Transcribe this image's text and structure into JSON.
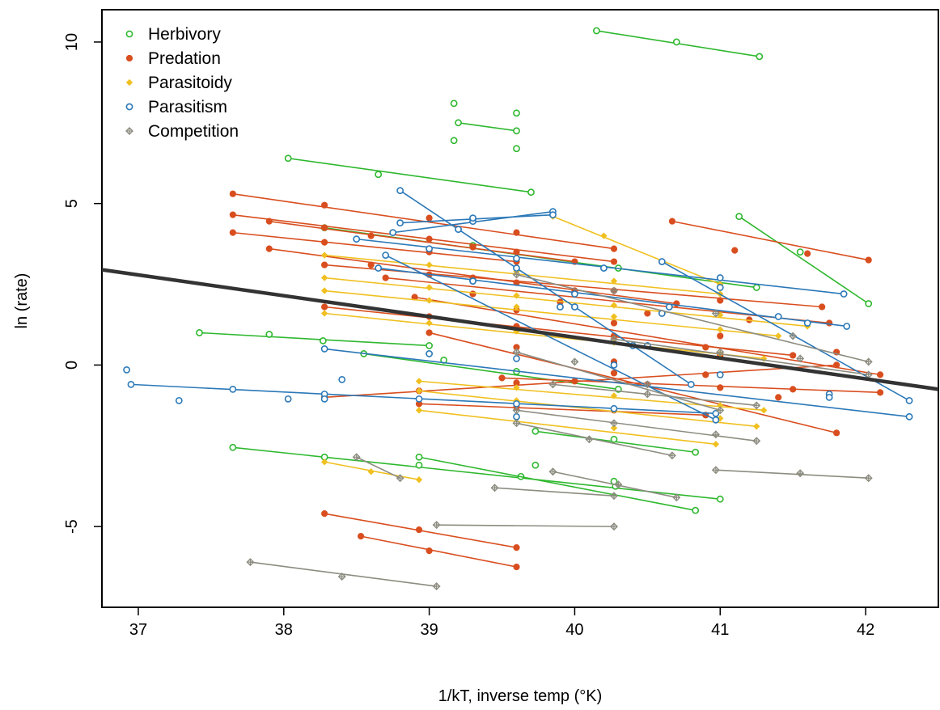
{
  "chart_data": {
    "type": "scatter",
    "xlabel": "1/kT, inverse temp (°K)",
    "ylabel": "ln (rate)",
    "xlim": [
      36.75,
      42.5
    ],
    "ylim": [
      -7.5,
      11.0
    ],
    "x_ticks": [
      37,
      38,
      39,
      40,
      41,
      42
    ],
    "x_tick_labels": [
      "37",
      "38",
      "39",
      "40",
      "41",
      "42"
    ],
    "y_ticks": [
      -5,
      0,
      5,
      10
    ],
    "y_tick_labels": [
      "-5",
      "0",
      "5",
      "10"
    ],
    "grid": false,
    "legend_position": "top-left",
    "legend": [
      {
        "label": "Herbivory",
        "color": "#2eb82e",
        "marker": "open-circle"
      },
      {
        "label": "Predation",
        "color": "#d94e1f",
        "marker": "filled-circle"
      },
      {
        "label": "Parasitoidy",
        "color": "#f0c020",
        "marker": "filled-diamond"
      },
      {
        "label": "Parasitism",
        "color": "#2a78b8",
        "marker": "open-circle"
      },
      {
        "label": "Competition",
        "color": "#8c8c80",
        "marker": "diamond-plus"
      }
    ],
    "overall_fit": {
      "x": [
        36.75,
        42.5
      ],
      "y": [
        2.95,
        -0.75
      ],
      "color": "#333333"
    },
    "series": [
      {
        "type": "Herbivory",
        "x": [
          40.15,
          40.7,
          41.27
        ],
        "y": [
          10.35,
          10.0,
          9.55
        ]
      },
      {
        "type": "Herbivory",
        "x": [
          39.2,
          39.6
        ],
        "y": [
          7.5,
          7.25
        ],
        "points": [
          [
            39.17,
            8.1
          ],
          [
            39.17,
            6.95
          ],
          [
            39.6,
            7.8
          ],
          [
            39.6,
            6.7
          ]
        ]
      },
      {
        "type": "Herbivory",
        "x": [
          38.03,
          38.65,
          39.7
        ],
        "y": [
          6.4,
          5.9,
          5.35
        ]
      },
      {
        "type": "Herbivory",
        "x": [
          41.13,
          41.55,
          42.02
        ],
        "y": [
          4.6,
          3.5,
          1.9
        ]
      },
      {
        "type": "Herbivory",
        "x": [
          38.28,
          39.3,
          40.3,
          41.25
        ],
        "y": [
          4.25,
          3.7,
          3.0,
          2.4
        ]
      },
      {
        "type": "Herbivory",
        "x": [
          37.42,
          37.9,
          38.27,
          39.0
        ],
        "y": [
          1.0,
          0.95,
          0.75,
          0.6
        ]
      },
      {
        "type": "Herbivory",
        "x": [
          38.55,
          39.1,
          39.6,
          40.3
        ],
        "y": [
          0.35,
          0.15,
          -0.2,
          -0.75
        ]
      },
      {
        "type": "Herbivory",
        "x": [
          39.73,
          40.27,
          40.83
        ],
        "y": [
          -2.05,
          -2.3,
          -2.7
        ]
      },
      {
        "type": "Herbivory",
        "x": [
          37.65,
          38.28,
          38.93,
          39.63,
          40.28,
          41.0
        ],
        "y": [
          -2.55,
          -2.85,
          -3.1,
          -3.45,
          -3.75,
          -4.15
        ]
      },
      {
        "type": "Herbivory",
        "x": [
          38.93,
          39.73,
          40.27,
          40.83
        ],
        "y": [
          -2.85,
          -3.1,
          -3.6,
          -4.5
        ]
      },
      {
        "type": "Predation",
        "x": [
          37.65,
          38.28,
          39.0,
          39.6,
          40.27
        ],
        "y": [
          5.3,
          4.95,
          4.55,
          4.1,
          3.6
        ]
      },
      {
        "type": "Predation",
        "x": [
          37.65,
          38.28,
          39.0,
          39.6,
          40.27
        ],
        "y": [
          4.65,
          4.25,
          3.9,
          3.5,
          3.2
        ]
      },
      {
        "type": "Predation",
        "x": [
          37.65,
          38.28,
          39.0,
          39.6
        ],
        "y": [
          4.1,
          3.8,
          3.5,
          3.2
        ]
      },
      {
        "type": "Predation",
        "x": [
          37.9,
          38.6,
          39.3,
          40.0
        ],
        "y": [
          4.45,
          4.0,
          3.65,
          3.2
        ]
      },
      {
        "type": "Predation",
        "x": [
          40.67,
          41.1,
          41.6,
          42.02
        ],
        "y": [
          4.45,
          3.55,
          3.45,
          3.25
        ]
      },
      {
        "type": "Predation",
        "x": [
          37.9,
          38.6,
          39.3,
          40.0,
          40.7
        ],
        "y": [
          3.6,
          3.1,
          2.7,
          2.3,
          1.9
        ]
      },
      {
        "type": "Predation",
        "x": [
          38.28,
          39.0,
          39.6,
          40.27,
          41.0,
          41.7
        ],
        "y": [
          3.1,
          2.8,
          2.55,
          2.3,
          2.0,
          1.8
        ]
      },
      {
        "type": "Predation",
        "x": [
          38.7,
          39.3,
          39.9,
          40.5,
          41.2,
          41.75
        ],
        "y": [
          2.7,
          2.2,
          1.95,
          1.6,
          1.4,
          1.3
        ]
      },
      {
        "type": "Predation",
        "x": [
          38.28,
          39.0,
          39.6,
          40.27,
          40.9,
          41.5
        ],
        "y": [
          1.8,
          1.5,
          1.2,
          0.9,
          0.55,
          0.3
        ]
      },
      {
        "type": "Predation",
        "x": [
          38.9,
          39.6,
          40.27,
          41.0,
          41.8,
          42.1
        ],
        "y": [
          2.1,
          1.7,
          1.3,
          0.9,
          0.4,
          -0.3
        ]
      },
      {
        "type": "Predation",
        "x": [
          38.28,
          38.93,
          39.6,
          40.27,
          41.0,
          41.8
        ],
        "y": [
          -1.0,
          -0.8,
          -0.55,
          -0.25,
          0.3,
          0.0
        ]
      },
      {
        "type": "Predation",
        "x": [
          39.0,
          39.6,
          40.27,
          40.9,
          41.4,
          41.8
        ],
        "y": [
          1.0,
          0.55,
          0.1,
          -0.3,
          -1.0,
          -2.1
        ]
      },
      {
        "type": "Predation",
        "x": [
          39.5,
          40.0,
          40.5,
          41.0,
          41.5,
          42.1
        ],
        "y": [
          -0.4,
          -0.5,
          -0.6,
          -0.7,
          -0.75,
          -0.85
        ]
      },
      {
        "type": "Predation",
        "x": [
          38.93,
          39.6,
          40.27,
          40.9
        ],
        "y": [
          -1.2,
          -1.3,
          -1.4,
          -1.55
        ]
      },
      {
        "type": "Predation",
        "x": [
          38.28,
          38.93,
          39.6
        ],
        "y": [
          -4.6,
          -5.1,
          -5.65
        ]
      },
      {
        "type": "Predation",
        "x": [
          38.53,
          39.0,
          39.6
        ],
        "y": [
          -5.3,
          -5.75,
          -6.25
        ]
      },
      {
        "type": "Parasitoidy",
        "x": [
          39.85,
          40.2,
          40.6,
          41.0
        ],
        "y": [
          4.6,
          4.0,
          3.2,
          2.5
        ]
      },
      {
        "type": "Parasitoidy",
        "x": [
          38.28,
          39.0,
          39.6,
          40.27,
          41.0
        ],
        "y": [
          3.4,
          3.1,
          2.9,
          2.6,
          2.2
        ]
      },
      {
        "type": "Parasitoidy",
        "x": [
          38.28,
          39.0,
          39.6,
          40.27,
          41.0,
          41.6
        ],
        "y": [
          2.7,
          2.4,
          2.15,
          1.85,
          1.55,
          1.2
        ]
      },
      {
        "type": "Parasitoidy",
        "x": [
          38.28,
          39.0,
          39.6,
          40.27,
          41.0,
          41.4
        ],
        "y": [
          2.3,
          2.0,
          1.8,
          1.5,
          1.1,
          0.9
        ]
      },
      {
        "type": "Parasitoidy",
        "x": [
          38.28,
          39.0,
          39.6,
          40.27,
          41.0,
          41.3
        ],
        "y": [
          1.6,
          1.3,
          1.05,
          0.7,
          0.35,
          0.2
        ]
      },
      {
        "type": "Parasitoidy",
        "x": [
          38.93,
          39.6,
          40.27,
          41.0,
          41.3
        ],
        "y": [
          -0.5,
          -0.7,
          -0.95,
          -1.25,
          -1.4
        ]
      },
      {
        "type": "Parasitoidy",
        "x": [
          38.93,
          39.6,
          40.27,
          41.0,
          41.25
        ],
        "y": [
          -0.8,
          -1.1,
          -1.4,
          -1.65,
          -1.9
        ]
      },
      {
        "type": "Parasitoidy",
        "x": [
          38.93,
          39.6,
          40.27,
          40.97
        ],
        "y": [
          -1.4,
          -1.65,
          -1.95,
          -2.45
        ]
      },
      {
        "type": "Parasitoidy",
        "x": [
          38.28,
          38.6,
          38.93
        ],
        "y": [
          -3.0,
          -3.3,
          -3.55
        ]
      },
      {
        "type": "Parasitism",
        "x": [
          38.75,
          39.3,
          39.85
        ],
        "y": [
          4.1,
          4.45,
          4.75
        ]
      },
      {
        "type": "Parasitism",
        "x": [
          38.8,
          39.3,
          39.85
        ],
        "y": [
          4.4,
          4.55,
          4.65
        ]
      },
      {
        "type": "Parasitism",
        "x": [
          38.8,
          39.2,
          39.6,
          40.0,
          40.4,
          40.8
        ],
        "y": [
          5.4,
          4.2,
          3.0,
          1.8,
          0.6,
          -0.6
        ]
      },
      {
        "type": "Parasitism",
        "x": [
          38.5,
          39.0,
          39.6,
          40.2,
          41.0,
          41.85
        ],
        "y": [
          3.9,
          3.6,
          3.3,
          3.0,
          2.7,
          2.2
        ]
      },
      {
        "type": "Parasitism",
        "x": [
          38.65,
          39.3,
          40.0,
          40.65,
          41.4,
          41.87
        ],
        "y": [
          3.0,
          2.6,
          2.2,
          1.8,
          1.5,
          1.2
        ]
      },
      {
        "type": "Parasitism",
        "x": [
          38.7,
          39.3,
          39.9,
          40.5,
          40.97
        ],
        "y": [
          3.4,
          2.6,
          1.8,
          0.6,
          -1.7
        ]
      },
      {
        "type": "Parasitism",
        "x": [
          40.6,
          41.0,
          41.6,
          42.3
        ],
        "y": [
          3.2,
          2.4,
          1.3,
          -1.1
        ]
      },
      {
        "type": "Parasitism",
        "x": [
          38.28,
          39.0,
          39.6,
          40.27,
          41.0,
          41.75,
          42.3
        ],
        "y": [
          0.5,
          0.35,
          0.2,
          0.0,
          -0.3,
          -0.9,
          -1.6
        ]
      },
      {
        "type": "Parasitism",
        "x": [
          36.95,
          37.65,
          38.28,
          38.93,
          39.6,
          40.27,
          40.97
        ],
        "y": [
          -0.6,
          -0.75,
          -0.9,
          -1.05,
          -1.2,
          -1.35,
          -1.5
        ]
      },
      {
        "type": "Parasitism",
        "points": [
          [
            36.92,
            -0.15
          ],
          [
            37.28,
            -1.1
          ],
          [
            38.03,
            -1.05
          ],
          [
            38.4,
            -0.45
          ],
          [
            38.28,
            -1.05
          ],
          [
            39.6,
            -1.6
          ],
          [
            40.6,
            1.6
          ],
          [
            41.75,
            -1.0
          ]
        ]
      },
      {
        "type": "Competition",
        "x": [
          39.6,
          40.0,
          40.5,
          41.0
        ],
        "y": [
          0.4,
          0.1,
          -0.6,
          -1.4
        ]
      },
      {
        "type": "Competition",
        "x": [
          39.6,
          40.27,
          40.97,
          41.5,
          42.02
        ],
        "y": [
          2.8,
          2.3,
          1.6,
          0.9,
          0.1
        ]
      },
      {
        "type": "Competition",
        "x": [
          40.27,
          41.0,
          41.55,
          42.02
        ],
        "y": [
          0.8,
          0.4,
          0.2,
          -0.3
        ]
      },
      {
        "type": "Competition",
        "x": [
          39.6,
          40.27,
          40.97,
          41.25
        ],
        "y": [
          -1.4,
          -1.8,
          -2.15,
          -2.35
        ]
      },
      {
        "type": "Competition",
        "x": [
          39.85,
          40.5,
          41.25
        ],
        "y": [
          -0.6,
          -0.9,
          -1.25
        ]
      },
      {
        "type": "Competition",
        "x": [
          39.6,
          40.1,
          40.67
        ],
        "y": [
          -1.8,
          -2.3,
          -2.8
        ]
      },
      {
        "type": "Competition",
        "x": [
          40.97,
          41.55,
          42.02
        ],
        "y": [
          -3.25,
          -3.35,
          -3.5
        ]
      },
      {
        "type": "Competition",
        "x": [
          38.5,
          38.8
        ],
        "y": [
          -2.85,
          -3.5
        ]
      },
      {
        "type": "Competition",
        "x": [
          39.85,
          40.3,
          40.7
        ],
        "y": [
          -3.3,
          -3.7,
          -4.1
        ]
      },
      {
        "type": "Competition",
        "x": [
          39.45,
          40.27
        ],
        "y": [
          -3.8,
          -4.05
        ]
      },
      {
        "type": "Competition",
        "x": [
          39.05,
          40.27
        ],
        "y": [
          -4.95,
          -5.0
        ]
      },
      {
        "type": "Competition",
        "x": [
          37.77,
          38.4,
          39.05
        ],
        "y": [
          -6.1,
          -6.55,
          -6.85
        ]
      }
    ]
  }
}
